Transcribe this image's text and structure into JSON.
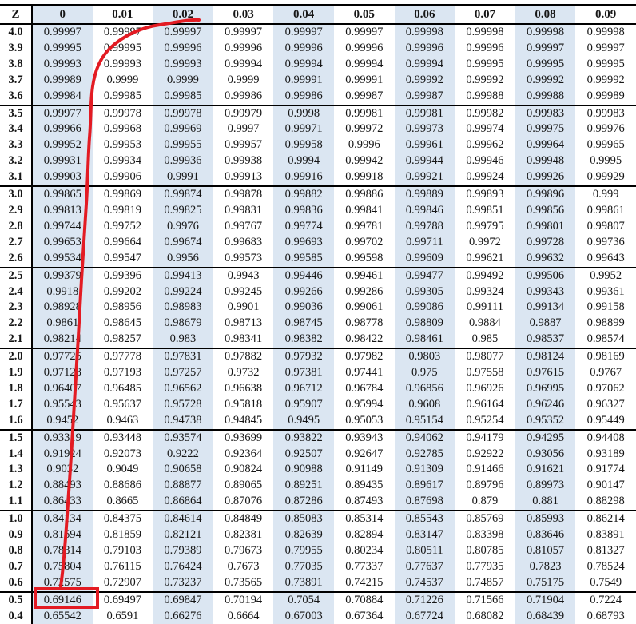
{
  "colors": {
    "shaded_column": "#dbe6f2",
    "annotation_red": "#e31b23",
    "table_border": "#000000"
  },
  "table": {
    "corner_header": "Z",
    "column_headers": [
      "0",
      "0.01",
      "0.02",
      "0.03",
      "0.04",
      "0.05",
      "0.06",
      "0.07",
      "0.08",
      "0.09"
    ],
    "shaded_columns": [
      "0",
      "0.02",
      "0.04",
      "0.06",
      "0.08"
    ],
    "group_start_rows": [
      "3.5",
      "3.0",
      "2.5",
      "2.0",
      "1.5",
      "1.0",
      "0.5"
    ],
    "rows": [
      {
        "z": "4.0",
        "values": [
          "0.99997",
          "0.99997",
          "0.99997",
          "0.99997",
          "0.99997",
          "0.99997",
          "0.99998",
          "0.99998",
          "0.99998",
          "0.99998"
        ]
      },
      {
        "z": "3.9",
        "values": [
          "0.99995",
          "0.99995",
          "0.99996",
          "0.99996",
          "0.99996",
          "0.99996",
          "0.99996",
          "0.99996",
          "0.99997",
          "0.99997"
        ]
      },
      {
        "z": "3.8",
        "values": [
          "0.99993",
          "0.99993",
          "0.99993",
          "0.99994",
          "0.99994",
          "0.99994",
          "0.99994",
          "0.99995",
          "0.99995",
          "0.99995"
        ]
      },
      {
        "z": "3.7",
        "values": [
          "0.99989",
          "0.9999",
          "0.9999",
          "0.9999",
          "0.99991",
          "0.99991",
          "0.99992",
          "0.99992",
          "0.99992",
          "0.99992"
        ]
      },
      {
        "z": "3.6",
        "values": [
          "0.99984",
          "0.99985",
          "0.99985",
          "0.99986",
          "0.99986",
          "0.99987",
          "0.99987",
          "0.99988",
          "0.99988",
          "0.99989"
        ]
      },
      {
        "z": "3.5",
        "values": [
          "0.99977",
          "0.99978",
          "0.99978",
          "0.99979",
          "0.9998",
          "0.99981",
          "0.99981",
          "0.99982",
          "0.99983",
          "0.99983"
        ]
      },
      {
        "z": "3.4",
        "values": [
          "0.99966",
          "0.99968",
          "0.99969",
          "0.9997",
          "0.99971",
          "0.99972",
          "0.99973",
          "0.99974",
          "0.99975",
          "0.99976"
        ]
      },
      {
        "z": "3.3",
        "values": [
          "0.99952",
          "0.99953",
          "0.99955",
          "0.99957",
          "0.99958",
          "0.9996",
          "0.99961",
          "0.99962",
          "0.99964",
          "0.99965"
        ]
      },
      {
        "z": "3.2",
        "values": [
          "0.99931",
          "0.99934",
          "0.99936",
          "0.99938",
          "0.9994",
          "0.99942",
          "0.99944",
          "0.99946",
          "0.99948",
          "0.9995"
        ]
      },
      {
        "z": "3.1",
        "values": [
          "0.99903",
          "0.99906",
          "0.9991",
          "0.99913",
          "0.99916",
          "0.99918",
          "0.99921",
          "0.99924",
          "0.99926",
          "0.99929"
        ]
      },
      {
        "z": "3.0",
        "values": [
          "0.99865",
          "0.99869",
          "0.99874",
          "0.99878",
          "0.99882",
          "0.99886",
          "0.99889",
          "0.99893",
          "0.99896",
          "0.999"
        ]
      },
      {
        "z": "2.9",
        "values": [
          "0.99813",
          "0.99819",
          "0.99825",
          "0.99831",
          "0.99836",
          "0.99841",
          "0.99846",
          "0.99851",
          "0.99856",
          "0.99861"
        ]
      },
      {
        "z": "2.8",
        "values": [
          "0.99744",
          "0.99752",
          "0.9976",
          "0.99767",
          "0.99774",
          "0.99781",
          "0.99788",
          "0.99795",
          "0.99801",
          "0.99807"
        ]
      },
      {
        "z": "2.7",
        "values": [
          "0.99653",
          "0.99664",
          "0.99674",
          "0.99683",
          "0.99693",
          "0.99702",
          "0.99711",
          "0.9972",
          "0.99728",
          "0.99736"
        ]
      },
      {
        "z": "2.6",
        "values": [
          "0.99534",
          "0.99547",
          "0.9956",
          "0.99573",
          "0.99585",
          "0.99598",
          "0.99609",
          "0.99621",
          "0.99632",
          "0.99643"
        ]
      },
      {
        "z": "2.5",
        "values": [
          "0.99379",
          "0.99396",
          "0.99413",
          "0.9943",
          "0.99446",
          "0.99461",
          "0.99477",
          "0.99492",
          "0.99506",
          "0.9952"
        ]
      },
      {
        "z": "2.4",
        "values": [
          "0.9918",
          "0.99202",
          "0.99224",
          "0.99245",
          "0.99266",
          "0.99286",
          "0.99305",
          "0.99324",
          "0.99343",
          "0.99361"
        ]
      },
      {
        "z": "2.3",
        "values": [
          "0.98928",
          "0.98956",
          "0.98983",
          "0.9901",
          "0.99036",
          "0.99061",
          "0.99086",
          "0.99111",
          "0.99134",
          "0.99158"
        ]
      },
      {
        "z": "2.2",
        "values": [
          "0.9861",
          "0.98645",
          "0.98679",
          "0.98713",
          "0.98745",
          "0.98778",
          "0.98809",
          "0.9884",
          "0.9887",
          "0.98899"
        ]
      },
      {
        "z": "2.1",
        "values": [
          "0.98214",
          "0.98257",
          "0.983",
          "0.98341",
          "0.98382",
          "0.98422",
          "0.98461",
          "0.985",
          "0.98537",
          "0.98574"
        ]
      },
      {
        "z": "2.0",
        "values": [
          "0.97725",
          "0.97778",
          "0.97831",
          "0.97882",
          "0.97932",
          "0.97982",
          "0.9803",
          "0.98077",
          "0.98124",
          "0.98169"
        ]
      },
      {
        "z": "1.9",
        "values": [
          "0.97128",
          "0.97193",
          "0.97257",
          "0.9732",
          "0.97381",
          "0.97441",
          "0.975",
          "0.97558",
          "0.97615",
          "0.9767"
        ]
      },
      {
        "z": "1.8",
        "values": [
          "0.96407",
          "0.96485",
          "0.96562",
          "0.96638",
          "0.96712",
          "0.96784",
          "0.96856",
          "0.96926",
          "0.96995",
          "0.97062"
        ]
      },
      {
        "z": "1.7",
        "values": [
          "0.95543",
          "0.95637",
          "0.95728",
          "0.95818",
          "0.95907",
          "0.95994",
          "0.9608",
          "0.96164",
          "0.96246",
          "0.96327"
        ]
      },
      {
        "z": "1.6",
        "values": [
          "0.9452",
          "0.9463",
          "0.94738",
          "0.94845",
          "0.9495",
          "0.95053",
          "0.95154",
          "0.95254",
          "0.95352",
          "0.95449"
        ]
      },
      {
        "z": "1.5",
        "values": [
          "0.93319",
          "0.93448",
          "0.93574",
          "0.93699",
          "0.93822",
          "0.93943",
          "0.94062",
          "0.94179",
          "0.94295",
          "0.94408"
        ]
      },
      {
        "z": "1.4",
        "values": [
          "0.91924",
          "0.92073",
          "0.9222",
          "0.92364",
          "0.92507",
          "0.92647",
          "0.92785",
          "0.92922",
          "0.93056",
          "0.93189"
        ]
      },
      {
        "z": "1.3",
        "values": [
          "0.9032",
          "0.9049",
          "0.90658",
          "0.90824",
          "0.90988",
          "0.91149",
          "0.91309",
          "0.91466",
          "0.91621",
          "0.91774"
        ]
      },
      {
        "z": "1.2",
        "values": [
          "0.88493",
          "0.88686",
          "0.88877",
          "0.89065",
          "0.89251",
          "0.89435",
          "0.89617",
          "0.89796",
          "0.89973",
          "0.90147"
        ]
      },
      {
        "z": "1.1",
        "values": [
          "0.86433",
          "0.8665",
          "0.86864",
          "0.87076",
          "0.87286",
          "0.87493",
          "0.87698",
          "0.879",
          "0.881",
          "0.88298"
        ]
      },
      {
        "z": "1.0",
        "values": [
          "0.84134",
          "0.84375",
          "0.84614",
          "0.84849",
          "0.85083",
          "0.85314",
          "0.85543",
          "0.85769",
          "0.85993",
          "0.86214"
        ]
      },
      {
        "z": "0.9",
        "values": [
          "0.81594",
          "0.81859",
          "0.82121",
          "0.82381",
          "0.82639",
          "0.82894",
          "0.83147",
          "0.83398",
          "0.83646",
          "0.83891"
        ]
      },
      {
        "z": "0.8",
        "values": [
          "0.78814",
          "0.79103",
          "0.79389",
          "0.79673",
          "0.79955",
          "0.80234",
          "0.80511",
          "0.80785",
          "0.81057",
          "0.81327"
        ]
      },
      {
        "z": "0.7",
        "values": [
          "0.75804",
          "0.76115",
          "0.76424",
          "0.7673",
          "0.77035",
          "0.77337",
          "0.77637",
          "0.77935",
          "0.7823",
          "0.78524"
        ]
      },
      {
        "z": "0.6",
        "values": [
          "0.72575",
          "0.72907",
          "0.73237",
          "0.73565",
          "0.73891",
          "0.74215",
          "0.74537",
          "0.74857",
          "0.75175",
          "0.7549"
        ]
      },
      {
        "z": "0.5",
        "values": [
          "0.69146",
          "0.69497",
          "0.69847",
          "0.70194",
          "0.7054",
          "0.70884",
          "0.71226",
          "0.71566",
          "0.71904",
          "0.7224"
        ]
      },
      {
        "z": "0.4",
        "values": [
          "0.65542",
          "0.6591",
          "0.66276",
          "0.6664",
          "0.67003",
          "0.67364",
          "0.67724",
          "0.68082",
          "0.68439",
          "0.68793"
        ]
      }
    ]
  },
  "annotations": {
    "highlighted_cell": {
      "z": "0.5",
      "column": "0",
      "value": "0.69146"
    },
    "curve_color": "#e31b23"
  }
}
